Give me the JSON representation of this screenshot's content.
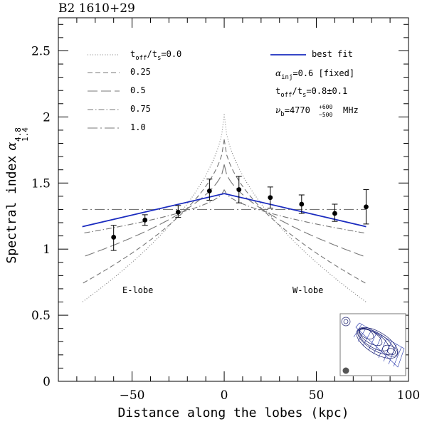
{
  "chart_data": {
    "type": "line",
    "title": "B2 1610+29",
    "xlabel": "Distance along the lobes (kpc)",
    "ylabel": "Spectral index",
    "ylabel_symbol": "α",
    "ylabel_sup": "4.8",
    "ylabel_sub": "1.4",
    "xlim": [
      -90,
      100
    ],
    "ylim": [
      0,
      2.75
    ],
    "xticks": [
      -50,
      0,
      50,
      100
    ],
    "xtick_labels": [
      "−50",
      "0",
      "50",
      "100"
    ],
    "yticks": [
      0,
      0.5,
      1,
      1.5,
      2,
      2.5
    ],
    "ytick_labels": [
      "0",
      "0.5",
      "1",
      "1.5",
      "2",
      "2.5"
    ],
    "grid": false,
    "legend_position": "top-left",
    "legend": [
      {
        "label_main": "t",
        "label_sub1": "off",
        "label_mid": "/t",
        "label_sub2": "s",
        "label_tail": "=0.0",
        "style": "dotted"
      },
      {
        "label": "0.25",
        "style": "short-dash"
      },
      {
        "label": "0.5",
        "style": "long-dash"
      },
      {
        "label": "0.75",
        "style": "dash-dot"
      },
      {
        "label": "1.0",
        "style": "long-dash-dot"
      }
    ],
    "fit_legend": {
      "label": "best fit",
      "color": "#1a2bbf"
    },
    "fit_params": {
      "alpha_prefix": "α",
      "alpha_sub": "inj",
      "alpha_rest": "=0.6 [fixed]",
      "toff_main": "t",
      "toff_sub1": "off",
      "toff_mid": "/t",
      "toff_sub2": "s",
      "toff_rest": "=0.8±0.1",
      "nu_prefix": "ν",
      "nu_sub": "b",
      "nu_eq": "=4770",
      "nu_up": "+600",
      "nu_down": "−500",
      "nu_unit": "MHz"
    },
    "annotations": {
      "east": "E-lobe",
      "west": "W-lobe"
    },
    "series": [
      {
        "name": "0.0",
        "style": "dotted",
        "color": "#777777",
        "x": [
          -77,
          0,
          77
        ],
        "y": [
          0.6,
          2.02,
          0.6
        ]
      },
      {
        "name": "0.25",
        "style": "short-dash",
        "color": "#777777",
        "x": [
          -77,
          0,
          77
        ],
        "y": [
          0.74,
          1.83,
          0.74
        ]
      },
      {
        "name": "0.5",
        "style": "long-dash",
        "color": "#777777",
        "x": [
          -77,
          0,
          77
        ],
        "y": [
          0.94,
          1.64,
          0.94
        ]
      },
      {
        "name": "0.75",
        "style": "dash-dot",
        "color": "#777777",
        "x": [
          -77,
          0,
          77
        ],
        "y": [
          1.12,
          1.45,
          1.12
        ]
      },
      {
        "name": "1.0",
        "style": "long-dash-dot",
        "color": "#777777",
        "x": [
          -77,
          0,
          77
        ],
        "y": [
          1.3,
          1.3,
          1.3
        ]
      },
      {
        "name": "best fit",
        "style": "solid",
        "color": "#1a2bbf",
        "x": [
          -77,
          0,
          77
        ],
        "y": [
          1.17,
          1.42,
          1.17
        ]
      }
    ],
    "points": [
      {
        "x": -60,
        "y": 1.09,
        "lo": 0.99,
        "hi": 1.18
      },
      {
        "x": -43,
        "y": 1.22,
        "lo": 1.18,
        "hi": 1.26
      },
      {
        "x": -25,
        "y": 1.28,
        "lo": 1.24,
        "hi": 1.33
      },
      {
        "x": -8,
        "y": 1.44,
        "lo": 1.37,
        "hi": 1.53
      },
      {
        "x": 8,
        "y": 1.45,
        "lo": 1.35,
        "hi": 1.55
      },
      {
        "x": 25,
        "y": 1.39,
        "lo": 1.31,
        "hi": 1.47
      },
      {
        "x": 42,
        "y": 1.34,
        "lo": 1.27,
        "hi": 1.41
      },
      {
        "x": 60,
        "y": 1.27,
        "lo": 1.21,
        "hi": 1.34
      },
      {
        "x": 77,
        "y": 1.32,
        "lo": 1.19,
        "hi": 1.45
      }
    ]
  }
}
